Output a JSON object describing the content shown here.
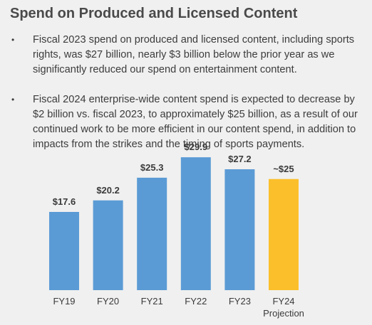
{
  "title": "Spend on Produced and Licensed Content",
  "bullets": [
    "Fiscal 2023 spend on produced and licensed content, including sports rights, was $27 billion, nearly $3 billion below the prior year as we significantly reduced our spend on entertainment content.",
    "Fiscal 2024 enterprise-wide content spend is expected to decrease by $2 billion vs. fiscal 2023, to approximately $25 billion, as a result of our continued work to be more efficient in our content spend, in addition to impacts from the strikes and the timing of sports payments."
  ],
  "bullet_glyph": "•",
  "colors": {
    "actual": "#5b9bd5",
    "projection": "#fbbf2b",
    "text": "#333333"
  },
  "chart_data": {
    "type": "bar",
    "categories": [
      "FY19",
      "FY20",
      "FY21",
      "FY22",
      "FY23",
      "FY24"
    ],
    "category_sublabels": [
      "",
      "",
      "",
      "",
      "",
      "Projection"
    ],
    "values": [
      17.6,
      20.2,
      25.3,
      29.9,
      27.2,
      25
    ],
    "data_labels": [
      "$17.6",
      "$20.2",
      "$25.3",
      "$29.9",
      "$27.2",
      "~$25"
    ],
    "highlight_index": 5,
    "title": "",
    "xlabel": "",
    "ylabel": "",
    "ylim": [
      0,
      30
    ],
    "grid": false,
    "legend": "none"
  }
}
